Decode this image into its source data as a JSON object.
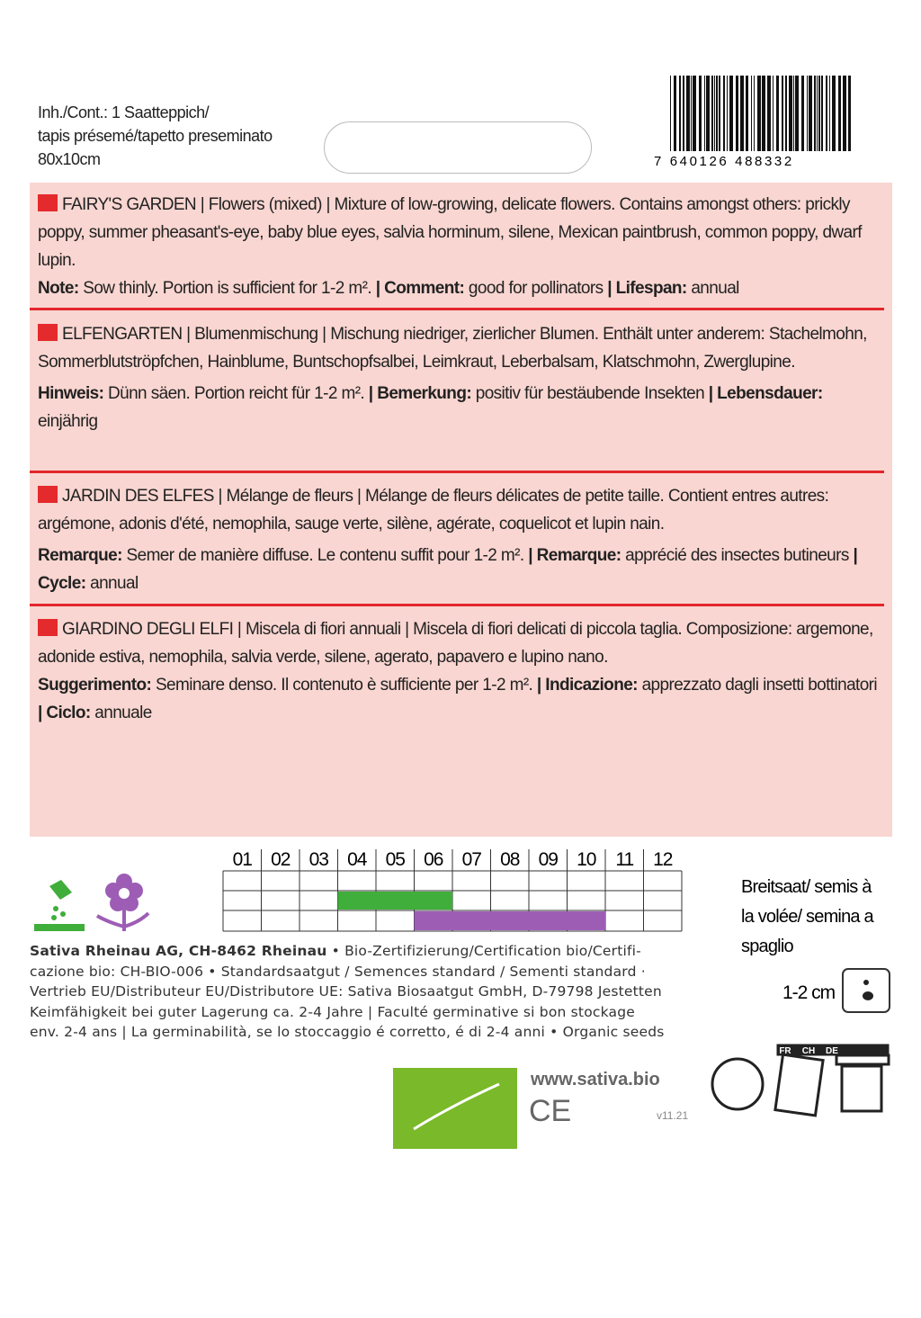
{
  "header": {
    "contents": [
      "Inh./Cont.: 1 Saatteppich/",
      "tapis présemé/tapetto preseminato",
      "80x10cm"
    ],
    "barcode": "7 640126 488332"
  },
  "sections": [
    {
      "title": "FAIRY'S GARDEN | Flowers (mixed) | Mixture of low-growing, delicate flowers. Contains amongst others: prickly poppy, summer pheasant's-eye, baby blue eyes, salvia horminum, silene, Mexican paintbrush, common poppy, dwarf lupin.",
      "notes": [
        {
          "label": "Note:",
          "text": " Sow thinly. Portion is sufficient for 1-2 m². "
        },
        {
          "label": "| Comment:",
          "text": " good for pollinators "
        },
        {
          "label": "| Lifespan:",
          "text": " annual"
        }
      ]
    },
    {
      "title": "ELFENGARTEN | Blumenmischung | Mischung niedriger, zierlicher Blumen. Enthält unter anderem: Stachelmohn, Sommerblutströpfchen, Hainblume, Buntschopfsalbei, Leimkraut, Leberbalsam, Klatschmohn, Zwerglupine.",
      "notes": [
        {
          "label": "Hinweis:",
          "text": " Dünn säen. Portion reicht für 1-2 m². "
        },
        {
          "label": "| Bemerkung:",
          "text": " positiv für bestäubende Insekten "
        },
        {
          "label": "| Lebensdauer:",
          "text": " einjährig"
        }
      ]
    },
    {
      "title": "JARDIN DES ELFES | Mélange de fleurs | Mélange de fleurs délicates de petite taille. Contient entres autres: argémone, adonis d'été, nemophila, sauge verte, silène, agérate, coquelicot et lupin nain.",
      "notes": [
        {
          "label": "Remarque:",
          "text": " Semer de manière diffuse. Le contenu suffit pour 1-2 m². "
        },
        {
          "label": "| Remarque:",
          "text": " apprécié des insectes butineurs "
        },
        {
          "label": "| Cycle:",
          "text": " annual"
        }
      ]
    },
    {
      "title": "GIARDINO DEGLI ELFI | Miscela di fiori annuali | Miscela di fiori delicati di piccola taglia. Composizione: argemone, adonide estiva, nemophila, salvia verde, silene, agerato, papavero e lupino nano.",
      "notes": [
        {
          "label": "Suggerimento:",
          "text": " Seminare denso. Il contenuto è sufficiente per 1-2 m². "
        },
        {
          "label": "| Indicazione:",
          "text": " apprezzato dagli insetti bottinatori "
        },
        {
          "label": "| Ciclo:",
          "text": " annuale"
        }
      ]
    }
  ],
  "calendar": {
    "months": [
      "01",
      "02",
      "03",
      "04",
      "05",
      "06",
      "07",
      "08",
      "09",
      "10",
      "11",
      "12"
    ],
    "bars": [
      {
        "from": 4,
        "to": 6,
        "color": "#3fae3a"
      },
      {
        "from": 6,
        "to": 10,
        "color": "#9d5db5"
      }
    ]
  },
  "footer": {
    "company": "Sativa Rheinau AG, CH-8462 Rheinau",
    "lines": [
      " • Bio-Zertifizierung/Certification bio/Certifi-",
      "cazione bio: CH-BIO-006 • Standardsaatgut / Semences standard / Sementi standard ·",
      "Vertrieb EU/Distributeur EU/Distributore UE: Sativa Biosaatgut GmbH, D-79798 Jestetten",
      "Keimfähigkeit bei guter Lagerung ca. 2-4 Jahre | Faculté germinative si bon stockage",
      "env. 2-4 ans | La germinabilità, se lo stoccaggio é corretto, é di 2-4 anni • Organic seeds"
    ],
    "sowing": [
      "Breitsaat/ semis à",
      "la volée/ semina a",
      "spaglio"
    ],
    "depth": "1-2 cm",
    "website": "www.sativa.bio",
    "ce": "CE",
    "version": "v11.21",
    "countries": [
      "FR",
      "CH",
      "DE"
    ]
  }
}
